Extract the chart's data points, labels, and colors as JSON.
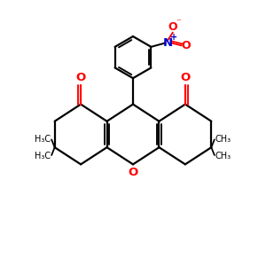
{
  "bg_color": "#ffffff",
  "bond_color": "#000000",
  "bond_width": 1.6,
  "o_color": "#ff0000",
  "n_color": "#0000cd",
  "text_color": "#000000",
  "font_size": 8.5,
  "small_font_size": 7.0,
  "xlim": [
    0,
    10
  ],
  "ylim": [
    0,
    10
  ]
}
